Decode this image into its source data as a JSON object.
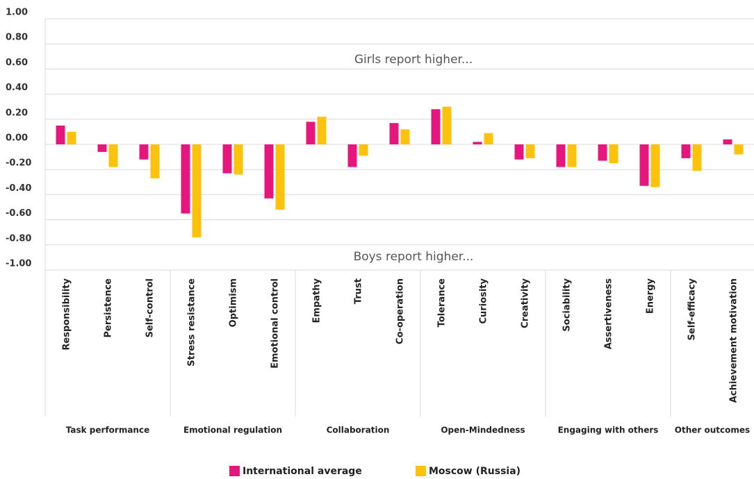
{
  "chart_data": {
    "type": "bar",
    "annotations": [
      "Girls report higher...",
      "Boys report higher..."
    ],
    "groups": [
      {
        "name": "Task performance",
        "categories": [
          "Responsibility",
          "Persistence",
          "Self-control"
        ]
      },
      {
        "name": "Emotional regulation",
        "categories": [
          "Stress resistance",
          "Optimism",
          "Emotional control"
        ]
      },
      {
        "name": "Collaboration",
        "categories": [
          "Empathy",
          "Trust",
          "Co-operation"
        ]
      },
      {
        "name": "Open-Mindedness",
        "categories": [
          "Tolerance",
          "Curiosity",
          "Creativity"
        ]
      },
      {
        "name": "Engaging with others",
        "categories": [
          "Sociability",
          "Assertiveness",
          "Energy"
        ]
      },
      {
        "name": "Other outcomes",
        "categories": [
          "Self-efficacy",
          "Achievement motivation"
        ]
      }
    ],
    "series": [
      {
        "name": "International average",
        "color": "#e5177d",
        "values": [
          0.15,
          -0.06,
          -0.12,
          -0.55,
          -0.23,
          -0.43,
          0.18,
          -0.18,
          0.17,
          0.28,
          0.02,
          -0.12,
          -0.18,
          -0.13,
          -0.33,
          -0.11,
          0.04
        ]
      },
      {
        "name": "Moscow (Russia)",
        "color": "#fdc20c",
        "values": [
          0.1,
          -0.18,
          -0.27,
          -0.74,
          -0.24,
          -0.52,
          0.22,
          -0.09,
          0.12,
          0.3,
          0.09,
          -0.11,
          -0.18,
          -0.15,
          -0.34,
          -0.21,
          -0.08
        ]
      }
    ],
    "ylim": [
      -1,
      1
    ],
    "yticks": [
      {
        "value": -1,
        "label": "-1.00"
      },
      {
        "value": -0.8,
        "label": "-0.80"
      },
      {
        "value": -0.6,
        "label": "-0.60"
      },
      {
        "value": -0.4,
        "label": "-0.40"
      },
      {
        "value": -0.2,
        "label": "-0.20"
      },
      {
        "value": 0,
        "label": "0.00"
      },
      {
        "value": 0.2,
        "label": "0.20"
      },
      {
        "value": 0.4,
        "label": "0.40"
      },
      {
        "value": 0.6,
        "label": "0.60"
      },
      {
        "value": 0.8,
        "label": "0.80"
      },
      {
        "value": 1,
        "label": "1.00"
      }
    ],
    "grid": true,
    "legend": "bottom"
  }
}
